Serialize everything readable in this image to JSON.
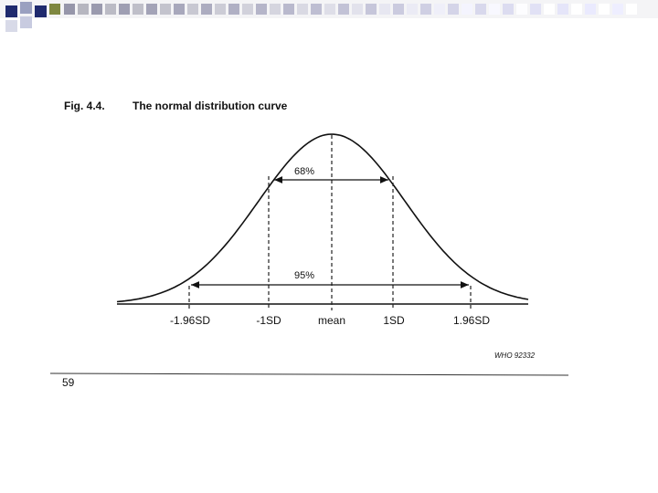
{
  "figure": {
    "number": "Fig. 4.4.",
    "title": "The normal distribution curve",
    "intervals": [
      "68%",
      "95%"
    ],
    "axis_labels": [
      "-1.96SD",
      "-1SD",
      "mean",
      "1SD",
      "1.96SD"
    ],
    "source": "WHO 92332"
  },
  "page_number": "59"
}
